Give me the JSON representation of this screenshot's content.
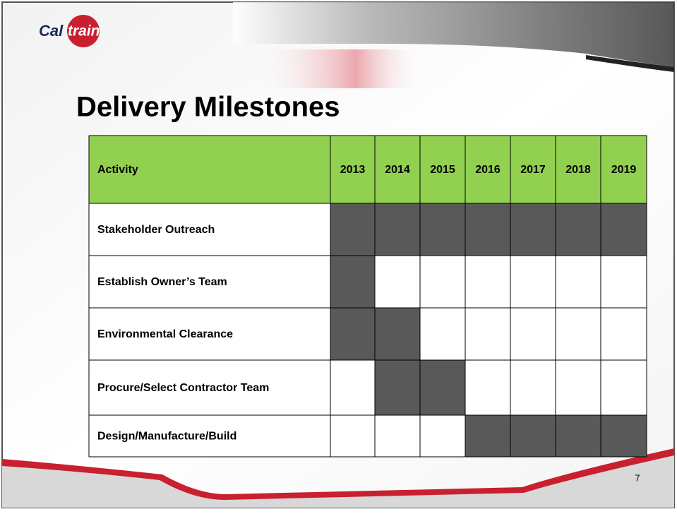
{
  "logo": {
    "left": "Cal",
    "right": "train"
  },
  "title": "Delivery Milestones",
  "table": {
    "header": [
      "Activity",
      "2013",
      "2014",
      "2015",
      "2016",
      "2017",
      "2018",
      "2019"
    ],
    "rows": [
      {
        "label": "Stakeholder Outreach",
        "active": [
          true,
          true,
          true,
          true,
          true,
          true,
          true
        ]
      },
      {
        "label": "Establish Owner’s Team",
        "active": [
          true,
          false,
          false,
          false,
          false,
          false,
          false
        ]
      },
      {
        "label": "Environmental Clearance",
        "active": [
          true,
          true,
          false,
          false,
          false,
          false,
          false
        ]
      },
      {
        "label": "Procure/Select Contractor Team",
        "active": [
          false,
          true,
          true,
          false,
          false,
          false,
          false
        ]
      },
      {
        "label": "Design/Manufacture/Build",
        "active": [
          false,
          false,
          false,
          true,
          true,
          true,
          true
        ]
      }
    ],
    "header_color": "#92d050",
    "active_color": "#595959"
  },
  "page_number": "7"
}
